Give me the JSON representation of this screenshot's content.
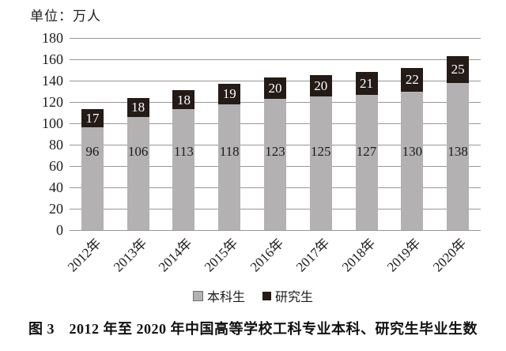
{
  "unit_label": "单位：万人",
  "caption": "图 3　2012 年至 2020 年中国高等学校工科专业本科、研究生毕业生数",
  "chart_data": {
    "type": "bar",
    "stacked": true,
    "unit": "万人",
    "categories": [
      "2012年",
      "2013年",
      "2014年",
      "2015年",
      "2016年",
      "2017年",
      "2018年",
      "2019年",
      "2020年"
    ],
    "series": [
      {
        "name": "本科生",
        "color": "#b3b1b1",
        "label_color": "#1c1c1c",
        "values": [
          96,
          106,
          113,
          118,
          123,
          125,
          127,
          130,
          138
        ]
      },
      {
        "name": "研究生",
        "color": "#241a16",
        "label_color": "#ffffff",
        "values": [
          17,
          18,
          18,
          19,
          20,
          20,
          21,
          22,
          25
        ]
      }
    ],
    "ylim": [
      0,
      180
    ],
    "ytick_step": 20,
    "grid": true,
    "bar_value_labels": true,
    "legend_position": "bottom-center",
    "xlabel_rotation_deg": -45
  },
  "colors": {
    "grid": "#999796",
    "undergrad_bar": "#b3b1b1",
    "grad_bar": "#241a16",
    "text": "#1c1c1c",
    "background": "#ffffff"
  }
}
